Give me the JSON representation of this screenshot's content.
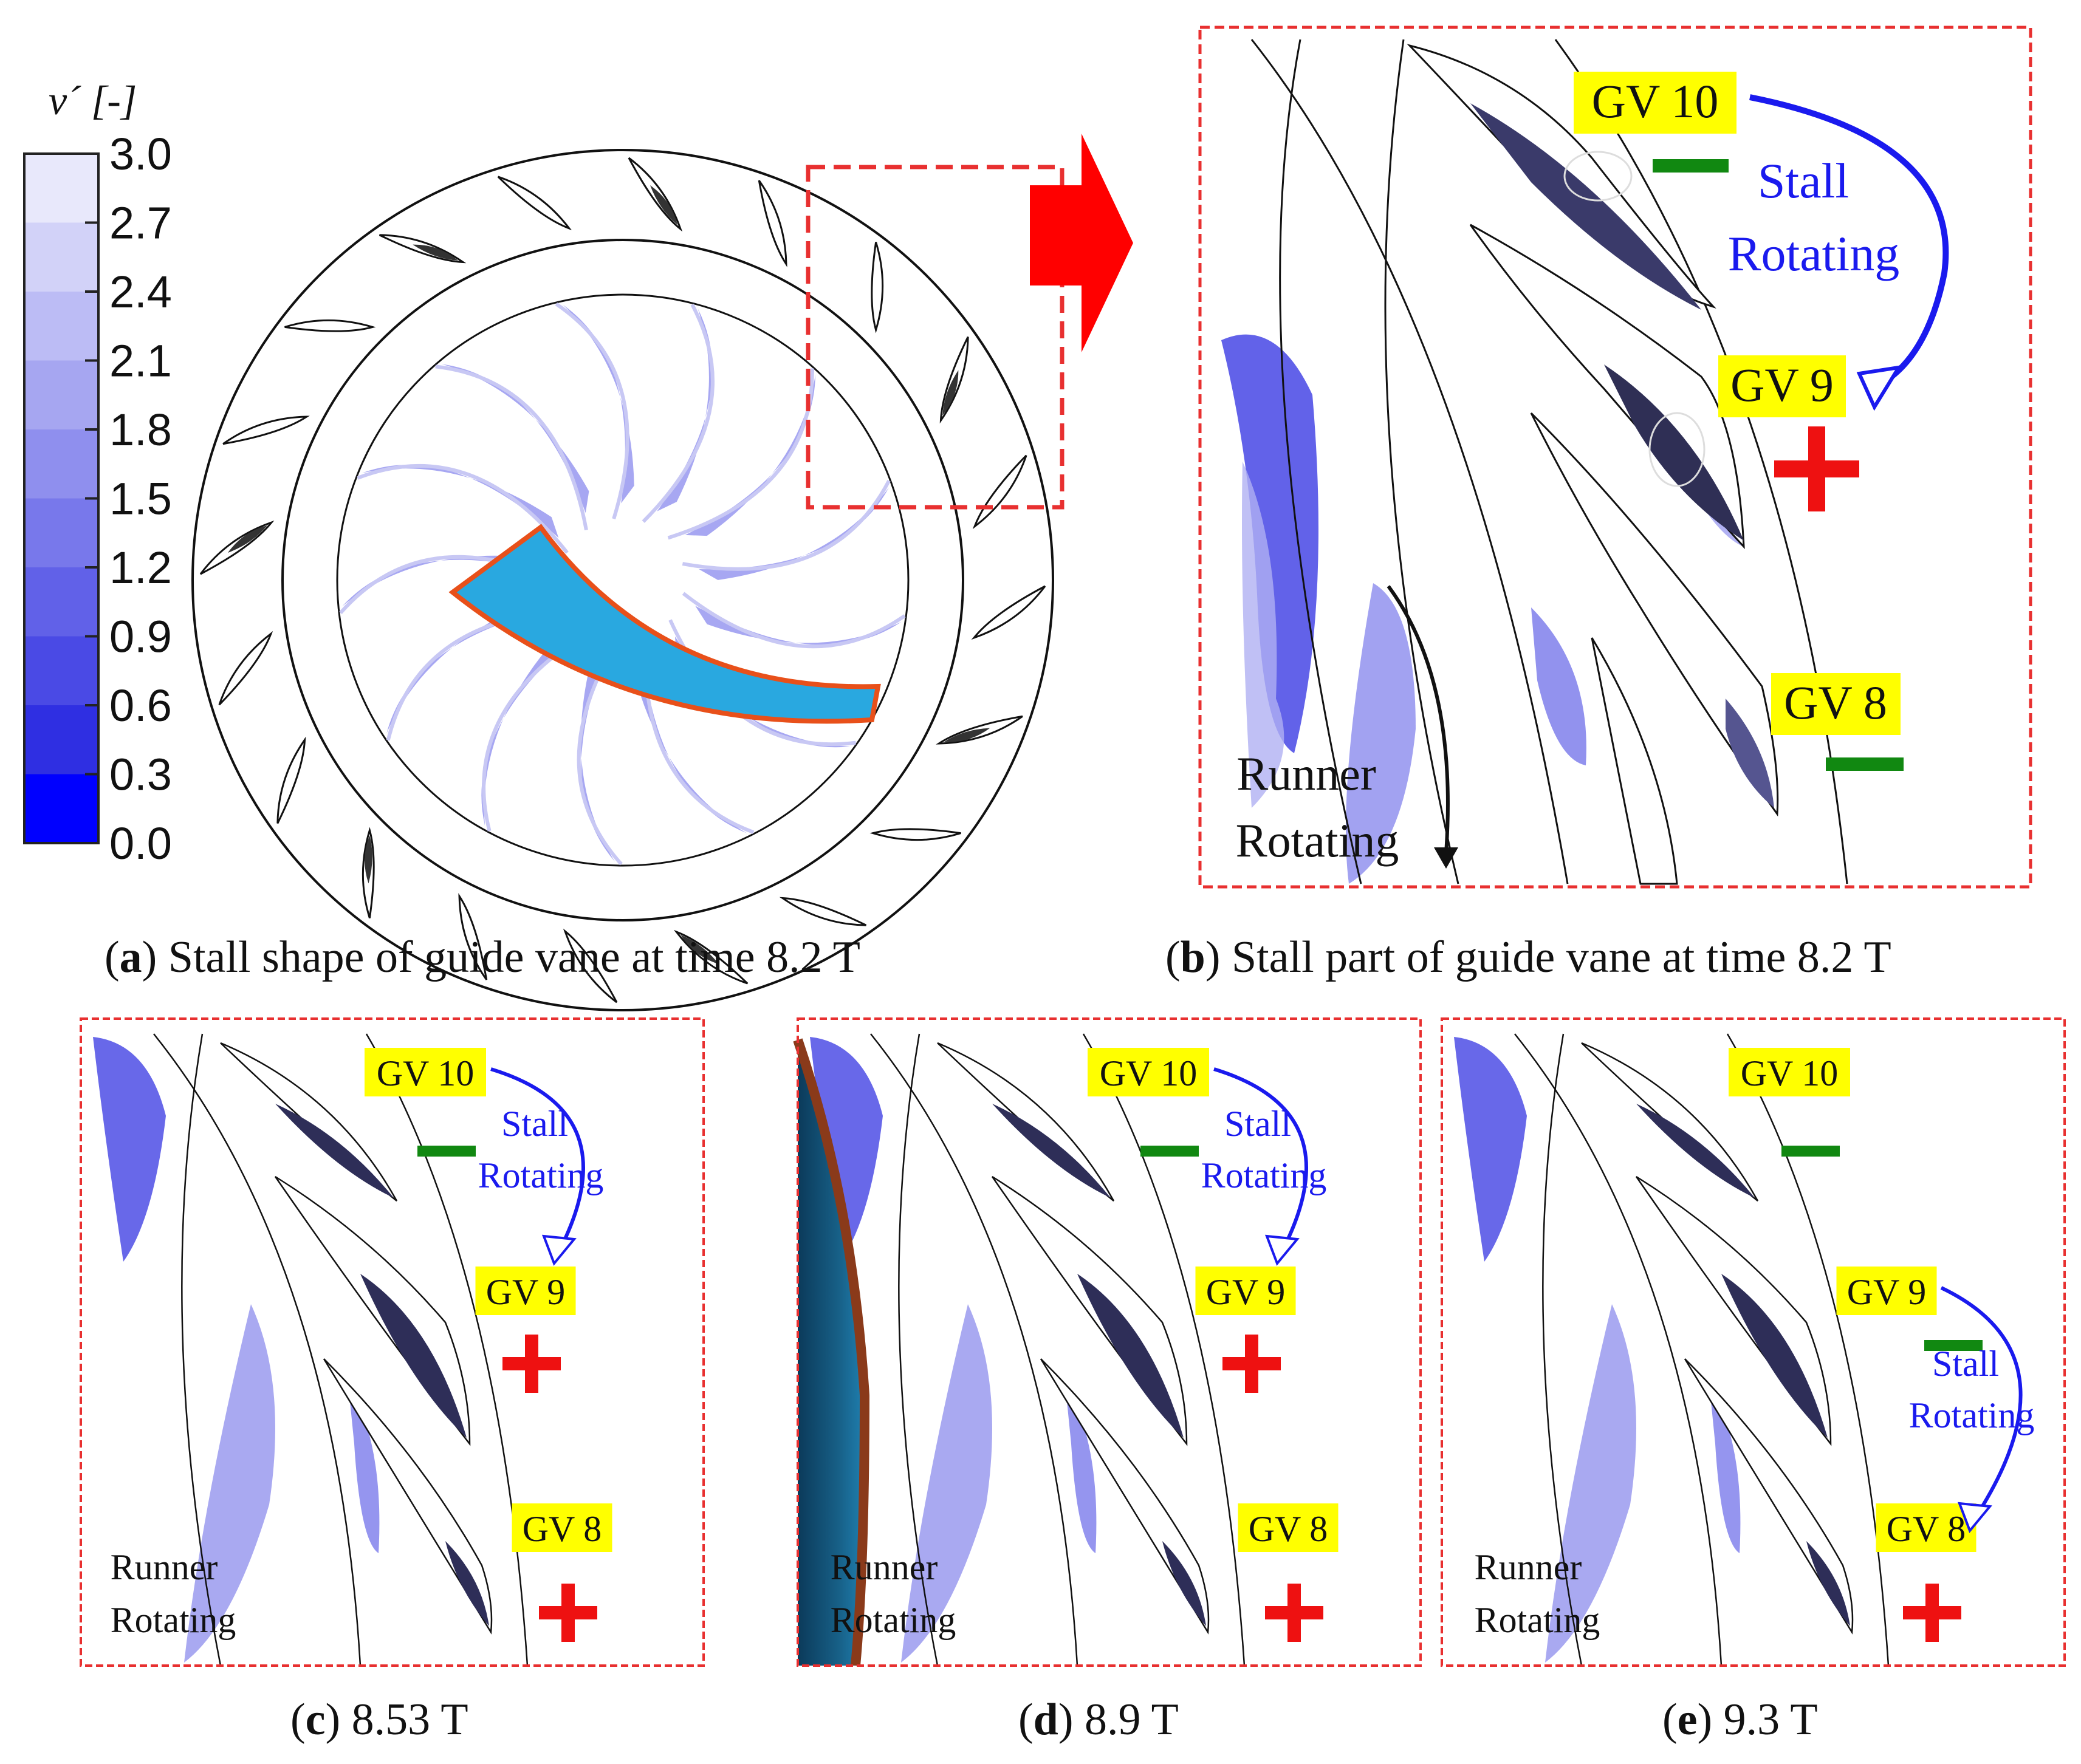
{
  "colorbar": {
    "title": "v´ [-]",
    "ticks": [
      "3.0",
      "2.7",
      "2.4",
      "2.1",
      "1.8",
      "1.5",
      "1.2",
      "0.9",
      "0.6",
      "0.3",
      "0.0"
    ],
    "colors": [
      "#ffffff",
      "#e8e8fb",
      "#d2d2f8",
      "#bcbcf5",
      "#a6a6f1",
      "#8f8fee",
      "#7878eb",
      "#6161e8",
      "#4a4ae5",
      "#2f2fe2",
      "#0000ff"
    ]
  },
  "panels": {
    "a": {
      "letter": "a",
      "caption": " Stall shape of guide vane at time 8.2 T"
    },
    "b": {
      "letter": "b",
      "caption": " Stall part of guide vane at time 8.2 T",
      "labels": {
        "gv10": "GV 10",
        "gv9": "GV 9",
        "gv8": "GV 8",
        "stall1": "Stall",
        "stall2": "Rotating",
        "runner1": "Runner",
        "runner2": "Rotating"
      },
      "signs": {
        "gv10": "minus",
        "gv9": "plus",
        "gv8": "minus"
      }
    },
    "c": {
      "letter": "c",
      "caption": " 8.53 T",
      "labels": {
        "gv10": "GV 10",
        "gv9": "GV 9",
        "gv8": "GV 8",
        "stall1": "Stall",
        "stall2": "Rotating",
        "runner1": "Runner",
        "runner2": "Rotating"
      },
      "signs": {
        "gv10": "minus",
        "gv9": "plus",
        "gv8": "plus"
      }
    },
    "d": {
      "letter": "d",
      "caption": " 8.9 T",
      "labels": {
        "gv10": "GV 10",
        "gv9": "GV 9",
        "gv8": "GV 8",
        "stall1": "Stall",
        "stall2": "Rotating",
        "runner1": "Runner",
        "runner2": "Rotating"
      },
      "signs": {
        "gv10": "minus",
        "gv9": "plus",
        "gv8": "plus"
      }
    },
    "e": {
      "letter": "e",
      "caption": " 9.3 T",
      "labels": {
        "gv10": "GV 10",
        "gv9": "GV 9",
        "gv8": "GV 8",
        "stall1": "Stall",
        "stall2": "Rotating",
        "runner1": "Runner",
        "runner2": "Rotating"
      },
      "signs": {
        "gv10": "minus",
        "gv9": "minus",
        "gv8": "plus"
      }
    }
  },
  "colors": {
    "label_bg": "#ffff00",
    "minus": "#118811",
    "plus": "#ee1111",
    "stall_text": "#1a1aee",
    "frame": "#e83030",
    "arrow_red": "#ff0000",
    "runner_blade": "#29a8e0",
    "runner_edge": "#e8501a"
  }
}
